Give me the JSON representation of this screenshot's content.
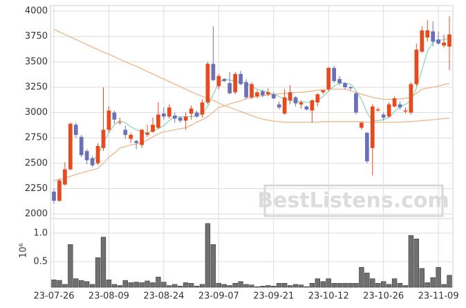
{
  "chart_data": {
    "type": "candlestick",
    "categories": [
      "23-07-26",
      null,
      null,
      null,
      null,
      null,
      null,
      null,
      null,
      null,
      "23-08-09",
      null,
      null,
      null,
      null,
      null,
      null,
      null,
      null,
      null,
      "23-08-24",
      null,
      null,
      null,
      null,
      null,
      null,
      null,
      null,
      null,
      "23-09-07",
      null,
      null,
      null,
      null,
      null,
      null,
      null,
      null,
      null,
      "23-09-21",
      null,
      null,
      null,
      null,
      null,
      null,
      null,
      null,
      null,
      "23-10-12",
      null,
      null,
      null,
      null,
      null,
      null,
      null,
      null,
      null,
      "23-10-26",
      null,
      null,
      null,
      null,
      null,
      null,
      null,
      null,
      null,
      "23-11-09",
      null,
      null
    ],
    "open": [
      2220,
      2130,
      2290,
      2440,
      2880,
      2760,
      2620,
      2550,
      2500,
      2650,
      2830,
      3000,
      2900,
      2830,
      2740,
      2720,
      2680,
      2780,
      2810,
      2850,
      2990,
      2960,
      2970,
      2950,
      2920,
      2990,
      3000,
      2980,
      3100,
      3480,
      3260,
      3330,
      3290,
      3200,
      3380,
      3300,
      3150,
      3160,
      3210,
      3180,
      3180,
      3080,
      2990,
      3120,
      3150,
      3080,
      3060,
      3020,
      3100,
      3200,
      3230,
      3440,
      3330,
      3290,
      3250,
      3190,
      2850,
      2800,
      2650,
      3020,
      2980,
      2960,
      3060,
      3080,
      3010,
      3000,
      3280,
      3600,
      3740,
      3800,
      3720,
      3660,
      3650
    ],
    "high": [
      2250,
      2350,
      2510,
      2900,
      2900,
      2780,
      2640,
      2570,
      2700,
      3250,
      3060,
      3020,
      2950,
      2870,
      2800,
      2730,
      2840,
      2880,
      2950,
      3100,
      3050,
      3080,
      3000,
      2960,
      3000,
      3070,
      3020,
      3130,
      3500,
      3850,
      3380,
      3340,
      3400,
      3400,
      3410,
      3330,
      3300,
      3220,
      3230,
      3240,
      3200,
      3110,
      3230,
      3270,
      3160,
      3120,
      3070,
      3130,
      3190,
      3220,
      3450,
      3460,
      3360,
      3300,
      3260,
      3200,
      2910,
      2810,
      3080,
      3050,
      3000,
      3100,
      3160,
      3110,
      3050,
      3300,
      3680,
      3850,
      3910,
      3900,
      3800,
      3770,
      3950
    ],
    "low": [
      2100,
      2120,
      2280,
      2430,
      2750,
      2560,
      2490,
      2460,
      2480,
      2620,
      2800,
      2890,
      2880,
      2740,
      2700,
      2640,
      2650,
      2760,
      2800,
      2840,
      2930,
      2940,
      2900,
      2900,
      2830,
      2930,
      2950,
      2950,
      3080,
      3310,
      3230,
      3300,
      3180,
      3180,
      3270,
      3130,
      3130,
      3140,
      3150,
      3160,
      3130,
      3030,
      2980,
      3080,
      3060,
      3040,
      3020,
      2900,
      3060,
      3180,
      3210,
      3290,
      3270,
      3230,
      3220,
      2980,
      2830,
      2500,
      2380,
      3010,
      2920,
      2950,
      3050,
      3030,
      2990,
      2980,
      3260,
      3590,
      3700,
      3650,
      3670,
      3640,
      3420
    ],
    "close": [
      2130,
      2330,
      2440,
      2890,
      2780,
      2580,
      2530,
      2480,
      2670,
      2830,
      3020,
      2930,
      2905,
      2780,
      2780,
      2700,
      2830,
      2800,
      2880,
      2980,
      2960,
      3050,
      2940,
      2920,
      2960,
      3040,
      2960,
      3100,
      3480,
      3320,
      3360,
      3310,
      3190,
      3380,
      3280,
      3150,
      3280,
      3200,
      3170,
      3200,
      3140,
      3050,
      3150,
      3200,
      3090,
      3100,
      3030,
      3120,
      3180,
      3220,
      3440,
      3310,
      3290,
      3250,
      3240,
      3000,
      2900,
      2520,
      3060,
      3030,
      2950,
      3080,
      3140,
      3050,
      3020,
      3280,
      3620,
      3810,
      3810,
      3700,
      3680,
      3690,
      3770
    ],
    "up_color": "#e64a1e",
    "down_color": "#6b70b8",
    "ylim": [
      1960,
      4055
    ],
    "yticks": [
      2000,
      2250,
      2500,
      2750,
      3000,
      3250,
      3500,
      3750,
      4000
    ],
    "grid": true,
    "lines": [
      {
        "color": "#8ed8b4",
        "values": [
          null,
          null,
          null,
          null,
          null,
          null,
          null,
          2520,
          2580,
          2700,
          2800,
          2880,
          2920,
          2900,
          2860,
          2830,
          2810,
          2800,
          2820,
          2840,
          2870,
          2920,
          2960,
          2960,
          2960,
          2960,
          2970,
          2990,
          3060,
          3180,
          3290,
          3330,
          3320,
          3310,
          3300,
          3290,
          3260,
          3230,
          3210,
          3200,
          3180,
          3160,
          3130,
          3120,
          3110,
          3110,
          3100,
          3100,
          3120,
          3160,
          3210,
          3260,
          3290,
          3290,
          3280,
          3220,
          3130,
          3000,
          2920,
          2920,
          2930,
          2950,
          3010,
          3060,
          3080,
          3120,
          3240,
          3420,
          3600,
          3700,
          3710,
          3720,
          3730
        ]
      },
      {
        "color": "#efb48a",
        "values": [
          2330,
          2340,
          2355,
          2370,
          2390,
          2405,
          2420,
          2435,
          2450,
          2500,
          2560,
          2600,
          2650,
          2665,
          2680,
          2690,
          2700,
          2730,
          2760,
          2790,
          2810,
          2820,
          2830,
          2840,
          2850,
          2875,
          2905,
          2930,
          2960,
          3005,
          3050,
          3065,
          3085,
          3100,
          3115,
          3135,
          3150,
          3160,
          3165,
          3175,
          3180,
          3185,
          3190,
          3195,
          3198,
          3200,
          3205,
          3210,
          3220,
          3225,
          3230,
          3230,
          3230,
          3230,
          3215,
          3200,
          3180,
          3165,
          3150,
          3140,
          3130,
          3130,
          3130,
          3135,
          3140,
          3150,
          3190,
          3230,
          3240,
          3250,
          3260,
          3275,
          3290
        ]
      },
      {
        "color": "#efb48a",
        "values": [
          3820,
          3795,
          3770,
          3745,
          3720,
          3695,
          3670,
          3645,
          3620,
          3595,
          3575,
          3550,
          3525,
          3500,
          3478,
          3455,
          3430,
          3405,
          3380,
          3355,
          3330,
          3305,
          3280,
          3255,
          3230,
          3205,
          3180,
          3160,
          3140,
          3120,
          3095,
          3070,
          3050,
          3030,
          3010,
          2990,
          2970,
          2950,
          2935,
          2925,
          2915,
          2910,
          2905,
          2905,
          2905,
          2905,
          2905,
          2905,
          2905,
          2910,
          2910,
          2910,
          2910,
          2910,
          2910,
          2910,
          2910,
          2905,
          2905,
          2905,
          2905,
          2905,
          2905,
          2905,
          2910,
          2910,
          2915,
          2920,
          2925,
          2930,
          2935,
          2940,
          2945
        ]
      }
    ],
    "volume": {
      "type": "bar",
      "color": "#707070",
      "values": [
        0.18,
        0.17,
        0.1,
        0.8,
        0.2,
        0.17,
        0.15,
        0.1,
        0.57,
        0.93,
        0.18,
        0.1,
        0.08,
        0.17,
        0.13,
        0.14,
        0.13,
        0.16,
        0.13,
        0.23,
        0.14,
        0.08,
        0.1,
        0.07,
        0.13,
        0.12,
        0.07,
        0.1,
        1.17,
        0.8,
        0.12,
        0.1,
        0.08,
        0.12,
        0.15,
        0.1,
        0.09,
        0.06,
        0.07,
        0.08,
        0.07,
        0.12,
        0.12,
        0.08,
        0.1,
        0.09,
        0.06,
        0.12,
        0.2,
        0.15,
        0.2,
        0.12,
        0.12,
        0.12,
        0.12,
        0.12,
        0.4,
        0.3,
        0.2,
        0.12,
        0.15,
        0.1,
        0.2,
        0.12,
        0.08,
        0.96,
        0.9,
        0.38,
        0.13,
        0.22,
        0.4,
        0.1,
        0.26
      ],
      "ylim": [
        0.05,
        1.23
      ],
      "yticks": [
        0.5,
        {
          "value": 1,
          "label": "1.0"
        }
      ],
      "ylabel": "10⁶"
    },
    "watermark": "BestListens.com"
  }
}
